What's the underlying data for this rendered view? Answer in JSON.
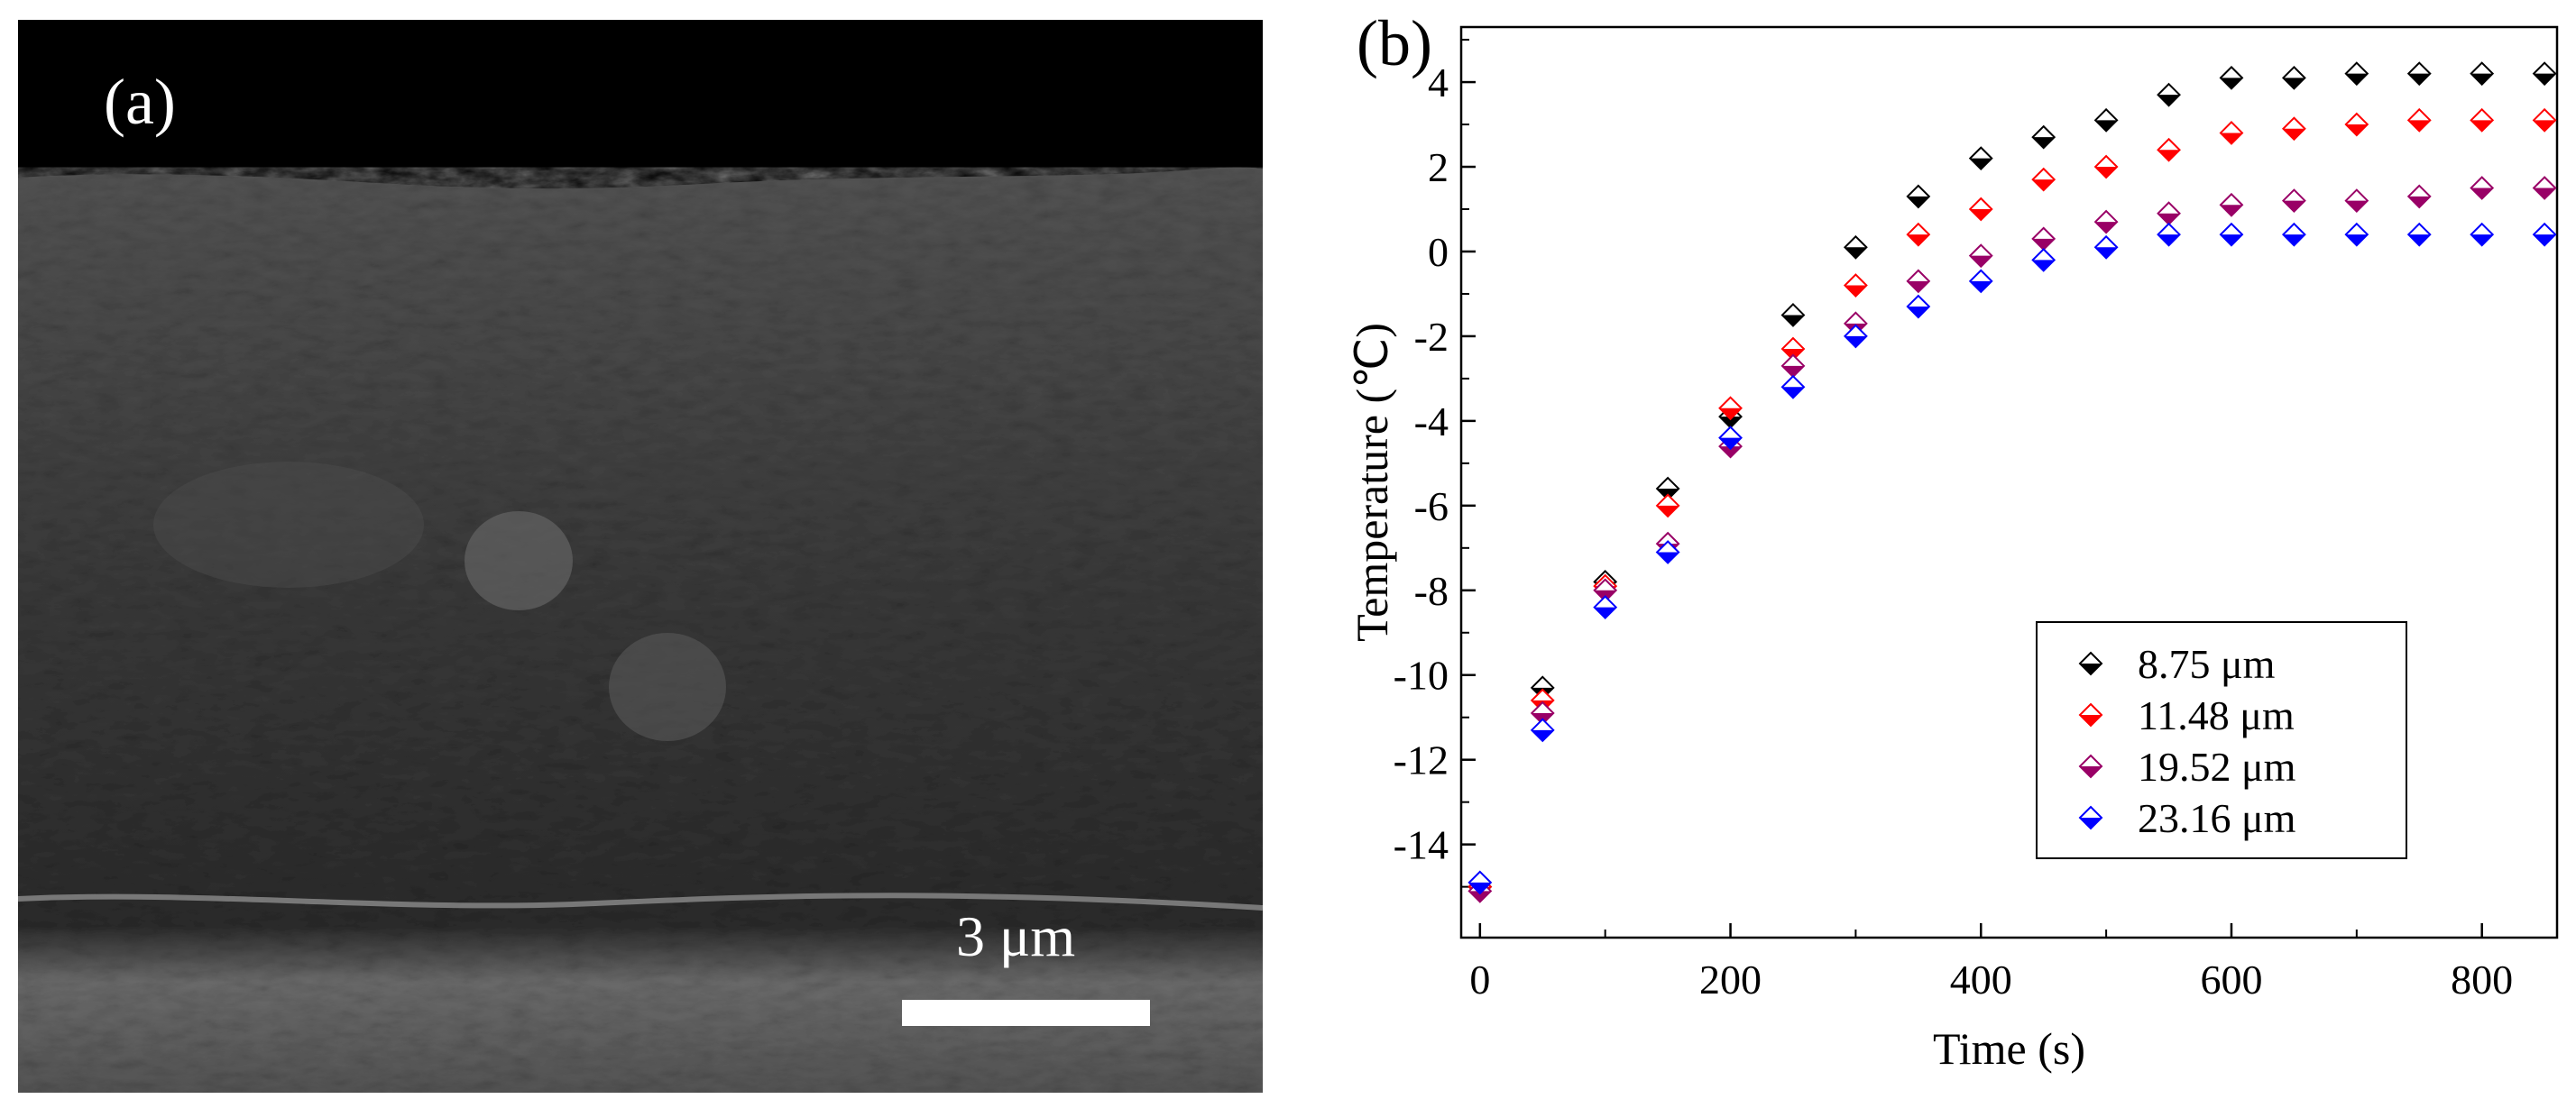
{
  "panel_a": {
    "label": "(a)",
    "scale_bar_label": "3 μm"
  },
  "chart_data": {
    "type": "scatter",
    "panel_label": "(b)",
    "xlabel": "Time (s)",
    "ylabel": "Temperature (℃)",
    "xlim": [
      -15,
      860
    ],
    "ylim": [
      -16.2,
      5.3
    ],
    "xticks": [
      0,
      200,
      400,
      600,
      800
    ],
    "yticks": [
      -14,
      -12,
      -10,
      -8,
      -6,
      -4,
      -2,
      0,
      2,
      4
    ],
    "grid": false,
    "legend_position": "bottom-right",
    "marker": "diamond",
    "x": [
      0,
      50,
      100,
      150,
      200,
      250,
      300,
      350,
      400,
      450,
      500,
      550,
      600,
      650,
      700,
      750,
      800,
      850
    ],
    "series": [
      {
        "name": "8.75 μm",
        "color": "#000000",
        "values": [
          -15.0,
          -10.3,
          -7.8,
          -5.6,
          -3.9,
          -1.5,
          0.1,
          1.3,
          2.2,
          2.7,
          3.1,
          3.7,
          4.1,
          4.1,
          4.2,
          4.2,
          4.2,
          4.2
        ]
      },
      {
        "name": "11.48 μm",
        "color": "#ff0000",
        "values": [
          -15.0,
          -10.6,
          -7.9,
          -6.0,
          -3.7,
          -2.3,
          -0.8,
          0.4,
          1.0,
          1.7,
          2.0,
          2.4,
          2.8,
          2.9,
          3.0,
          3.1,
          3.1,
          3.1
        ]
      },
      {
        "name": "19.52 μm",
        "color": "#990066",
        "values": [
          -15.1,
          -10.9,
          -8.0,
          -6.9,
          -4.6,
          -2.7,
          -1.7,
          -0.7,
          -0.1,
          0.3,
          0.7,
          0.9,
          1.1,
          1.2,
          1.2,
          1.3,
          1.5,
          1.5
        ]
      },
      {
        "name": "23.16 μm",
        "color": "#0000ff",
        "values": [
          -14.9,
          -11.3,
          -8.4,
          -7.1,
          -4.4,
          -3.2,
          -2.0,
          -1.3,
          -0.7,
          -0.2,
          0.1,
          0.4,
          0.4,
          0.4,
          0.4,
          0.4,
          0.4,
          0.4
        ]
      }
    ]
  }
}
